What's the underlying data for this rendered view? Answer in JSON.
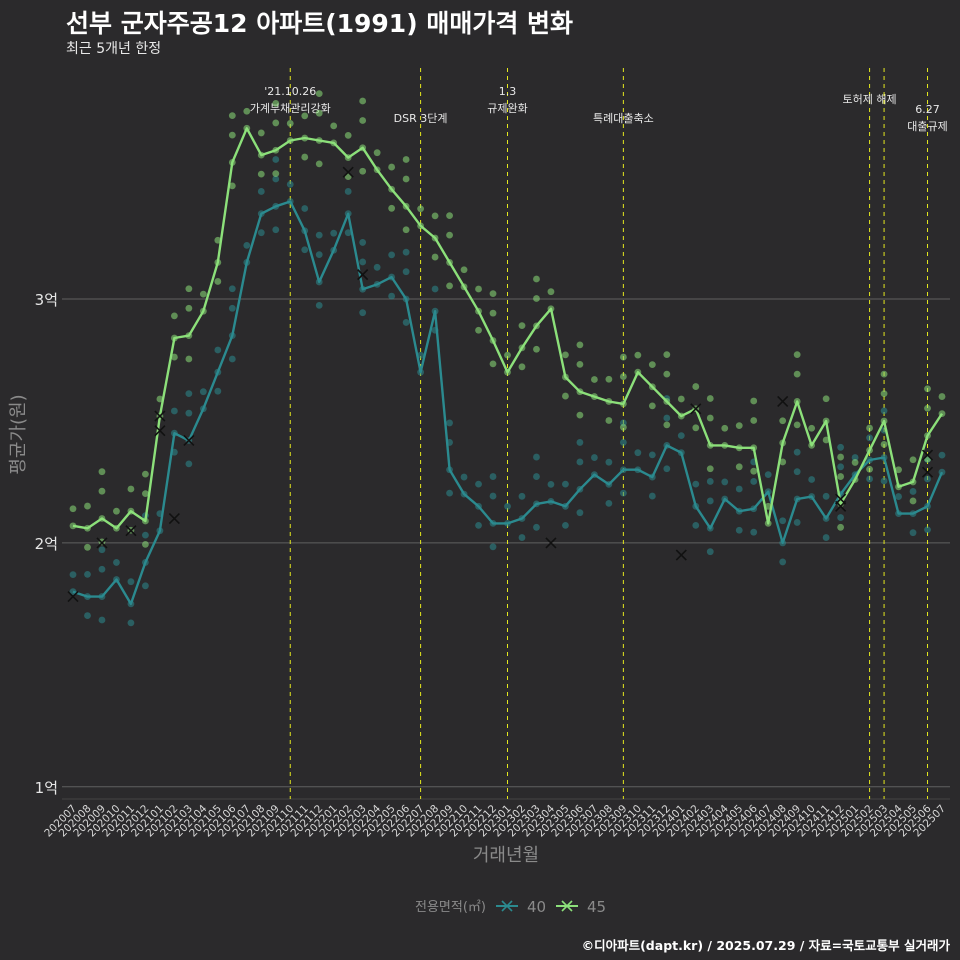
{
  "title": "선부 군자주공12 아파트(1991) 매매가격 변화",
  "subtitle": "최근 5개년 한정",
  "caption": "©디아파트(dapt.kr) / 2025.07.29 / 자료=국토교통부 실거래가",
  "colors": {
    "background": "#2b2a2c",
    "grid": "#606060",
    "event_line": "#e4e81e",
    "series_40": "#2b8a8f",
    "series_45": "#8ce07a"
  },
  "chart_data": {
    "type": "line",
    "title": "선부 군자주공12 아파트(1991) 매매가격 변화",
    "subtitle": "최근 5개년 한정",
    "xlabel": "거래년월",
    "ylabel": "평균가(원)",
    "y_unit": "억",
    "ylim": [
      0.95,
      3.98
    ],
    "yticks": [
      1,
      2,
      3
    ],
    "ytick_labels": [
      "1억",
      "2억",
      "3억"
    ],
    "grid": true,
    "legend": {
      "title": "전용면적(㎡)",
      "position": "bottom",
      "entries": [
        "40",
        "45"
      ]
    },
    "x": [
      "202007",
      "202008",
      "202009",
      "202010",
      "202011",
      "202012",
      "202101",
      "202102",
      "202103",
      "202104",
      "202105",
      "202106",
      "202107",
      "202108",
      "202109",
      "202110",
      "202111",
      "202112",
      "202201",
      "202202",
      "202203",
      "202204",
      "202205",
      "202206",
      "202207",
      "202208",
      "202209",
      "202210",
      "202211",
      "202212",
      "202301",
      "202302",
      "202303",
      "202304",
      "202305",
      "202306",
      "202307",
      "202308",
      "202309",
      "202310",
      "202311",
      "202312",
      "202401",
      "202402",
      "202403",
      "202404",
      "202405",
      "202406",
      "202407",
      "202408",
      "202409",
      "202410",
      "202411",
      "202412",
      "202501",
      "202502",
      "202503",
      "202504",
      "202505",
      "202506",
      "202507"
    ],
    "events": [
      {
        "x": "202110",
        "label": "'21.10.26\n가계부채관리강화",
        "row": 0
      },
      {
        "x": "202207",
        "label": "DSR 3단계",
        "row": 1
      },
      {
        "x": "202301",
        "label": "1.3\n규제완화",
        "row": 0
      },
      {
        "x": "202309",
        "label": "특례대출축소",
        "row": 1
      },
      {
        "x": "202502",
        "label": "토허제 해제",
        "row": 0
      },
      {
        "x": "202503",
        "label": "",
        "row": 0
      },
      {
        "x": "202506",
        "label": "6.27\n대출규제",
        "row": 0.6
      }
    ],
    "series": [
      {
        "name": "40",
        "color": "#2b8a8f",
        "values": [
          1.8,
          1.78,
          1.78,
          1.85,
          1.75,
          1.92,
          2.05,
          2.45,
          2.42,
          2.55,
          2.7,
          2.85,
          3.15,
          3.35,
          3.38,
          3.4,
          3.28,
          3.07,
          3.2,
          3.35,
          3.04,
          3.06,
          3.09,
          3.0,
          2.7,
          2.95,
          2.3,
          2.2,
          2.15,
          2.08,
          2.08,
          2.1,
          2.16,
          2.17,
          2.15,
          2.22,
          2.28,
          2.24,
          2.3,
          2.3,
          2.27,
          2.4,
          2.37,
          2.15,
          2.06,
          2.18,
          2.13,
          2.14,
          2.21,
          2.0,
          2.18,
          2.19,
          2.1,
          2.2,
          2.28,
          2.34,
          2.35,
          2.12,
          2.12,
          2.15,
          2.29
        ],
        "outliers": [
          {
            "x": "202007",
            "y": 1.78
          },
          {
            "x": "202101",
            "y": 2.46
          },
          {
            "x": "202103",
            "y": 2.42
          },
          {
            "x": "202203",
            "y": 3.1
          },
          {
            "x": "202401",
            "y": 1.95
          },
          {
            "x": "202412",
            "y": 2.18
          },
          {
            "x": "202506",
            "y": 2.29
          }
        ]
      },
      {
        "name": "45",
        "color": "#8ce07a",
        "values": [
          2.07,
          2.06,
          2.1,
          2.06,
          2.13,
          2.09,
          2.52,
          2.84,
          2.85,
          2.95,
          3.15,
          3.56,
          3.7,
          3.59,
          3.61,
          3.65,
          3.66,
          3.65,
          3.64,
          3.58,
          3.62,
          3.53,
          3.45,
          3.38,
          3.3,
          3.25,
          3.15,
          3.05,
          2.95,
          2.83,
          2.7,
          2.8,
          2.89,
          2.96,
          2.68,
          2.62,
          2.6,
          2.58,
          2.57,
          2.7,
          2.64,
          2.58,
          2.52,
          2.55,
          2.4,
          2.4,
          2.39,
          2.39,
          2.08,
          2.41,
          2.58,
          2.4,
          2.5,
          2.16,
          2.26,
          2.38,
          2.5,
          2.23,
          2.25,
          2.44,
          2.53
        ],
        "outliers": [
          {
            "x": "202009",
            "y": 2.0
          },
          {
            "x": "202011",
            "y": 2.05
          },
          {
            "x": "202101",
            "y": 2.52
          },
          {
            "x": "202102",
            "y": 2.1
          },
          {
            "x": "202202",
            "y": 3.52
          },
          {
            "x": "202304",
            "y": 2.0
          },
          {
            "x": "202402",
            "y": 2.55
          },
          {
            "x": "202408",
            "y": 2.58
          },
          {
            "x": "202412",
            "y": 2.15
          },
          {
            "x": "202506",
            "y": 2.36
          }
        ]
      }
    ]
  }
}
